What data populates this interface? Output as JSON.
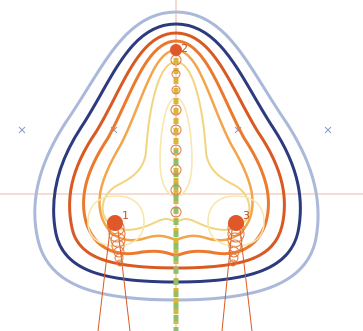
{
  "diagram": {
    "labels": [
      {
        "text": "1"
      },
      {
        "text": "2"
      },
      {
        "text": "3"
      }
    ],
    "contour_colors": {
      "outer_light_blue": "#aab8da",
      "navy": "#2c3a7e",
      "orange_dark": "#d85a22",
      "orange": "#ec7a2e",
      "amber": "#f2a54a",
      "yellow": "#f2d480",
      "pale_yellow": "#f7e7ad"
    },
    "axis_color": "#e6a08a",
    "center_line_colors": [
      "#d9b53a",
      "#8fbf6a"
    ]
  }
}
